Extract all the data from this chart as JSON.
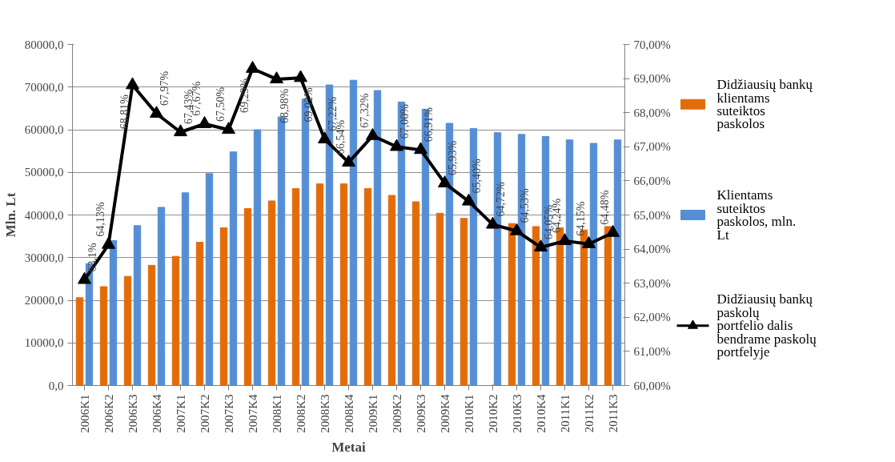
{
  "chart_data": {
    "type": "bar",
    "xlabel": "Metai",
    "ylabel": "Mln. Lt",
    "categories": [
      "2006K1",
      "2006K2",
      "2006K3",
      "2006K4",
      "2007K1",
      "2007K2",
      "2007K3",
      "2007K4",
      "2008K1",
      "2008K2",
      "2008K3",
      "2008K4",
      "2009K1",
      "2009K2",
      "2009K3",
      "2009K4",
      "2010K1",
      "2010K2",
      "2010K3",
      "2010K4",
      "2011K1",
      "2011K2",
      "2011K3"
    ],
    "series": [
      {
        "name": "Didžiausių bankų klientams suteiktos paskolos",
        "color": "#e36c0a",
        "values": [
          20600,
          23200,
          25600,
          28200,
          30300,
          33600,
          37000,
          41500,
          43300,
          46200,
          47300,
          47300,
          46200,
          44600,
          43100,
          40400,
          39200,
          null,
          38000,
          37300,
          37000,
          36500,
          37300
        ]
      },
      {
        "name": "Klientams suteiktos paskolos, mln. Lt",
        "color": "#558ed5",
        "values": [
          28600,
          34000,
          37500,
          41800,
          45200,
          49700,
          54800,
          60000,
          63000,
          67200,
          70500,
          71600,
          69200,
          66500,
          64800,
          61500,
          60300,
          59300,
          58900,
          58400,
          57600,
          56800,
          57600
        ]
      },
      {
        "name": "Didžiausių bankų paskolų portfelio dalis bendrame paskolų portfelyje",
        "color": "#000000",
        "type": "line",
        "axis": "y2",
        "marker": "triangle",
        "line_style": "solid",
        "values": [
          63.1,
          64.13,
          68.81,
          67.97,
          67.43,
          67.67,
          67.5,
          69.29,
          68.98,
          69.02,
          67.22,
          66.54,
          67.32,
          67.0,
          66.91,
          65.93,
          65.4,
          64.72,
          64.53,
          64.05,
          64.24,
          64.15,
          64.48
        ],
        "value_labels": [
          "63,1%",
          "64,13%",
          "68,81%",
          "67,97%",
          "67,43%",
          "67,67%",
          "67,50%",
          "69,29%",
          "68,98%",
          "69,02%",
          "67,22%",
          "66,54%",
          "67,32%",
          "67,00%",
          "66,91%",
          "65,93%",
          "65,40%",
          "64,72%",
          "64,53%",
          "64,05%",
          "64,24%",
          "64,15%",
          "64,48%"
        ]
      }
    ],
    "ylim": [
      0,
      80000
    ],
    "yticks": [
      {
        "value": 0,
        "label": "0,0"
      },
      {
        "value": 10000,
        "label": "10000,0"
      },
      {
        "value": 20000,
        "label": "20000,0"
      },
      {
        "value": 30000,
        "label": "30000,0"
      },
      {
        "value": 40000,
        "label": "40000,0"
      },
      {
        "value": 50000,
        "label": "50000,0"
      },
      {
        "value": 60000,
        "label": "60000,0"
      },
      {
        "value": 70000,
        "label": "70000,0"
      },
      {
        "value": 80000,
        "label": "80000,0"
      }
    ],
    "y2lim": [
      60,
      70
    ],
    "y2ticks": [
      {
        "value": 60,
        "label": "60,00%"
      },
      {
        "value": 61,
        "label": "61,00%"
      },
      {
        "value": 62,
        "label": "62,00%"
      },
      {
        "value": 63,
        "label": "63,00%"
      },
      {
        "value": 64,
        "label": "64,00%"
      },
      {
        "value": 65,
        "label": "65,00%"
      },
      {
        "value": 66,
        "label": "66,00%"
      },
      {
        "value": 67,
        "label": "67,00%"
      },
      {
        "value": 68,
        "label": "68,00%"
      },
      {
        "value": 69,
        "label": "69,00%"
      },
      {
        "value": 70,
        "label": "70,00%"
      }
    ],
    "grid": "y",
    "legend": "right"
  }
}
